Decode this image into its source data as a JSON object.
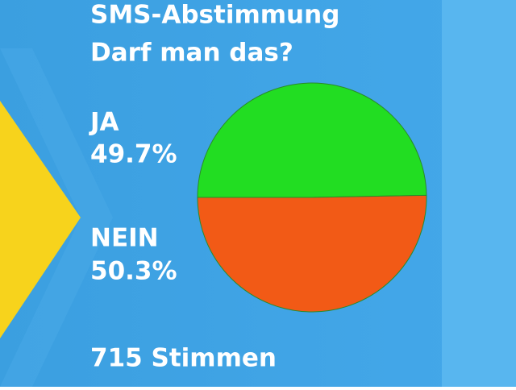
{
  "chart_data": {
    "type": "pie",
    "title": "SMS-Abstimmung",
    "subtitle": "Darf man das?",
    "categories": [
      "JA",
      "NEIN"
    ],
    "values": [
      49.7,
      50.3
    ],
    "value_labels": [
      "49.7%",
      "50.3%"
    ],
    "colors": [
      "#22dd22",
      "#f25a16"
    ],
    "annotation": "715 Stimmen"
  }
}
